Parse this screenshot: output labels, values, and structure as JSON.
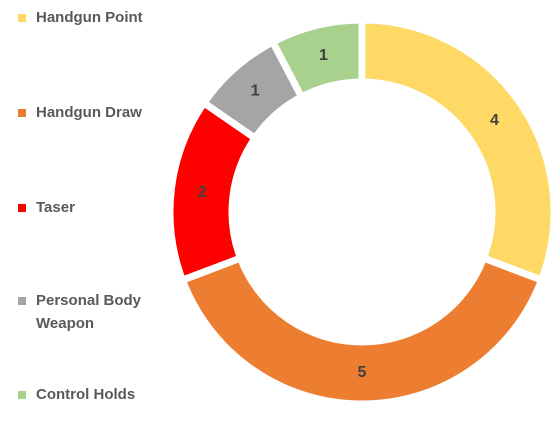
{
  "chart_data": {
    "type": "donut",
    "categories": [
      "Handgun Point",
      "Handgun Draw",
      "Taser",
      "Personal Body Weapon",
      "Control Holds"
    ],
    "values": [
      4,
      5,
      2,
      1,
      1
    ],
    "colors": [
      "#ffd966",
      "#ed7d31",
      "#ff0000",
      "#a5a5a5",
      "#a9d18e"
    ],
    "legend": "left"
  }
}
